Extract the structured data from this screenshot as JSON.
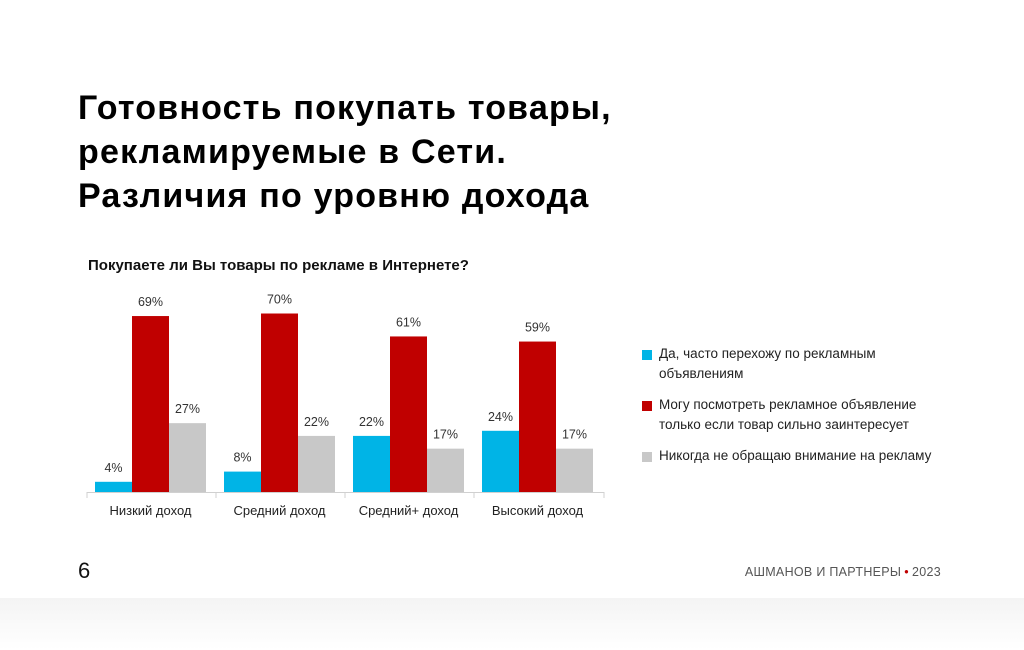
{
  "slide": {
    "title_lines": [
      "Готовность покупать товары,",
      "рекламируемые в Сети.",
      "Различия по уровню дохода"
    ],
    "page_number": "6",
    "brand": "АШМАНОВ И ПАРТНЕРЫ",
    "brand_separator": "•",
    "year": "2023"
  },
  "chart_data": {
    "type": "bar",
    "title": "Покупаете ли Вы товары по рекламе в Интернете?",
    "categories": [
      "Низкий доход",
      "Средний доход",
      "Средний+ доход",
      "Высокий доход"
    ],
    "series": [
      {
        "name": "Да, часто перехожу по рекламным объявлениям",
        "color": "#00b4e6",
        "values": [
          4,
          8,
          22,
          24
        ]
      },
      {
        "name": "Могу посмотреть рекламное объявление только если товар сильно заинтересует",
        "color": "#c00000",
        "values": [
          69,
          70,
          61,
          59
        ]
      },
      {
        "name": "Никогда не обращаю внимание на рекламу",
        "color": "#c8c8c8",
        "values": [
          27,
          22,
          17,
          17
        ]
      }
    ],
    "value_suffix": "%",
    "ylim": [
      0,
      70
    ],
    "legend_position": "right",
    "grid": false
  }
}
